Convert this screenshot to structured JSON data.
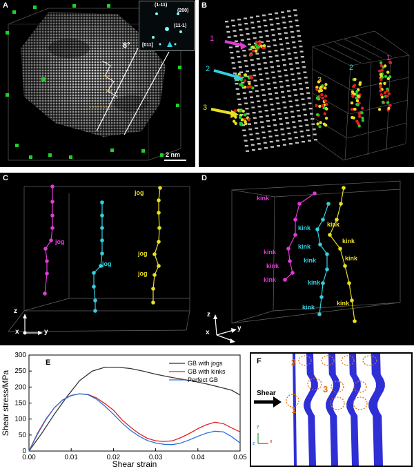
{
  "panels": {
    "a": {
      "label": "A",
      "angle": "8°",
      "scale_bar": "2 nm",
      "inset": {
        "planes": [
          "(1-11)",
          "(200)",
          "(11-1)"
        ],
        "zone_axis": "[011]"
      }
    },
    "b": {
      "label": "B",
      "markers": [
        "1",
        "2",
        "3"
      ],
      "markers_box": [
        "3",
        "2",
        "1"
      ]
    },
    "c": {
      "label": "C",
      "tags": [
        "jog",
        "jog",
        "jog",
        "jog",
        "jog"
      ],
      "axes": {
        "z": "z",
        "x": "x",
        "y": "y"
      }
    },
    "d": {
      "label": "D",
      "kink_label": "kink",
      "axes": {
        "z": "z",
        "x": "x",
        "y": "y"
      }
    },
    "e": {
      "label": "E"
    },
    "f": {
      "label": "F",
      "shear": "Shear",
      "markers": [
        "2",
        "3",
        "1"
      ],
      "axes": {
        "y": "y",
        "x": "x",
        "z": "z"
      }
    }
  },
  "chart_data": {
    "type": "line",
    "xlabel": "Shear strain",
    "ylabel": "Shear stress/MPa",
    "xlim": [
      0,
      0.05
    ],
    "ylim": [
      0,
      300
    ],
    "xticks": [
      "0.00",
      "0.01",
      "0.02",
      "0.03",
      "0.04",
      "0.05"
    ],
    "yticks": [
      "0",
      "50",
      "100",
      "150",
      "200",
      "250",
      "300"
    ],
    "legend_position": "top-right",
    "series": [
      {
        "name": "GB with jogs",
        "color": "#333333",
        "points": [
          [
            0,
            0
          ],
          [
            0.003,
            55
          ],
          [
            0.006,
            115
          ],
          [
            0.009,
            170
          ],
          [
            0.012,
            220
          ],
          [
            0.015,
            250
          ],
          [
            0.018,
            262
          ],
          [
            0.021,
            262
          ],
          [
            0.024,
            258
          ],
          [
            0.027,
            250
          ],
          [
            0.03,
            240
          ],
          [
            0.033,
            232
          ],
          [
            0.036,
            225
          ],
          [
            0.039,
            218
          ],
          [
            0.042,
            210
          ],
          [
            0.045,
            200
          ],
          [
            0.048,
            190
          ],
          [
            0.05,
            175
          ]
        ]
      },
      {
        "name": "GB with kinks",
        "color": "#e02020",
        "points": [
          [
            0,
            0
          ],
          [
            0.002,
            55
          ],
          [
            0.004,
            100
          ],
          [
            0.006,
            135
          ],
          [
            0.008,
            160
          ],
          [
            0.01,
            173
          ],
          [
            0.012,
            179
          ],
          [
            0.014,
            177
          ],
          [
            0.016,
            166
          ],
          [
            0.018,
            148
          ],
          [
            0.02,
            128
          ],
          [
            0.022,
            98
          ],
          [
            0.024,
            75
          ],
          [
            0.026,
            55
          ],
          [
            0.028,
            40
          ],
          [
            0.03,
            32
          ],
          [
            0.032,
            30
          ],
          [
            0.034,
            32
          ],
          [
            0.036,
            42
          ],
          [
            0.038,
            55
          ],
          [
            0.04,
            70
          ],
          [
            0.042,
            82
          ],
          [
            0.044,
            90
          ],
          [
            0.046,
            86
          ],
          [
            0.048,
            72
          ],
          [
            0.05,
            60
          ]
        ]
      },
      {
        "name": "Perfect GB",
        "color": "#2a6fdb",
        "points": [
          [
            0,
            0
          ],
          [
            0.002,
            52
          ],
          [
            0.004,
            98
          ],
          [
            0.006,
            135
          ],
          [
            0.008,
            160
          ],
          [
            0.01,
            174
          ],
          [
            0.012,
            179
          ],
          [
            0.014,
            176
          ],
          [
            0.016,
            162
          ],
          [
            0.018,
            140
          ],
          [
            0.02,
            115
          ],
          [
            0.022,
            88
          ],
          [
            0.024,
            65
          ],
          [
            0.026,
            47
          ],
          [
            0.028,
            33
          ],
          [
            0.03,
            25
          ],
          [
            0.032,
            21
          ],
          [
            0.034,
            20
          ],
          [
            0.036,
            25
          ],
          [
            0.038,
            35
          ],
          [
            0.04,
            46
          ],
          [
            0.042,
            56
          ],
          [
            0.044,
            62
          ],
          [
            0.046,
            60
          ],
          [
            0.048,
            45
          ],
          [
            0.05,
            25
          ]
        ]
      }
    ]
  }
}
